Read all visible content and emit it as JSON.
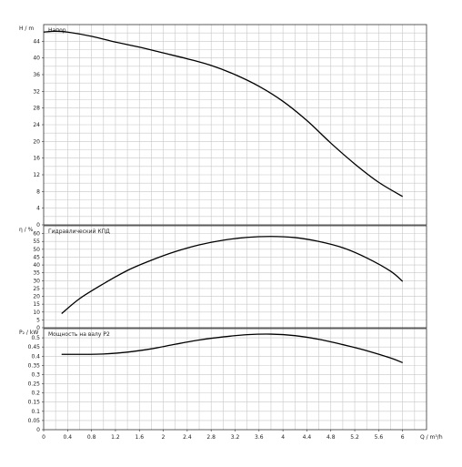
{
  "chart_data": [
    {
      "type": "line",
      "title": "Напор",
      "ylabel": "H / m",
      "xlim": [
        0,
        6.4
      ],
      "ylim": [
        0,
        48
      ],
      "x_ticks": [
        "0",
        "0.4",
        "0.8",
        "1.2",
        "1.6",
        "2",
        "2.4",
        "2.8",
        "3.2",
        "3.6",
        "4",
        "4.4",
        "4.8",
        "5.2",
        "5.6",
        "6"
      ],
      "y_ticks": [
        "0",
        "4",
        "8",
        "12",
        "16",
        "20",
        "24",
        "28",
        "32",
        "36",
        "40",
        "44"
      ],
      "grid": true,
      "series": [
        {
          "x": [
            0,
            0.2,
            0.4,
            0.8,
            1.2,
            1.6,
            2,
            2.4,
            2.8,
            3.2,
            3.6,
            4,
            4.4,
            4.8,
            5.2,
            5.6,
            6
          ],
          "y": [
            46.2,
            46.4,
            46.2,
            45.2,
            43.8,
            42.6,
            41.2,
            39.8,
            38.2,
            36,
            33.2,
            29.6,
            25,
            19.6,
            14.6,
            10.2,
            6.8
          ]
        }
      ]
    },
    {
      "type": "line",
      "title": "Гидравлический КПД",
      "ylabel": "η / %",
      "xlim": [
        0,
        6.4
      ],
      "ylim": [
        0,
        65
      ],
      "x_ticks": [
        "0",
        "0.4",
        "0.8",
        "1.2",
        "1.6",
        "2",
        "2.4",
        "2.8",
        "3.2",
        "3.6",
        "4",
        "4.4",
        "4.8",
        "5.2",
        "5.6",
        "6"
      ],
      "y_ticks": [
        "0",
        "5",
        "10",
        "15",
        "20",
        "25",
        "30",
        "35",
        "40",
        "45",
        "50",
        "55",
        "60"
      ],
      "grid": true,
      "series": [
        {
          "x": [
            0.3,
            0.6,
            1,
            1.4,
            1.8,
            2.2,
            2.6,
            3,
            3.4,
            3.8,
            4.2,
            4.6,
            5,
            5.4,
            5.8,
            6
          ],
          "y": [
            9,
            18.5,
            28,
            36.5,
            43,
            48.5,
            52.8,
            55.8,
            57.6,
            58.2,
            57.5,
            55,
            51,
            44.5,
            36,
            29.5
          ]
        }
      ]
    },
    {
      "type": "line",
      "title": "Мощность на валу P2",
      "ylabel": "P₂ / kW",
      "xlabel": "Q / m³/h",
      "xlim": [
        0,
        6.4
      ],
      "ylim": [
        0,
        0.55
      ],
      "x_ticks": [
        "0",
        "0.4",
        "0.8",
        "1.2",
        "1.6",
        "2",
        "2.4",
        "2.8",
        "3.2",
        "3.6",
        "4",
        "4.4",
        "4.8",
        "5.2",
        "5.6",
        "6"
      ],
      "y_ticks": [
        "0",
        "0.05",
        "0.1",
        "0.15",
        "0.2",
        "0.25",
        "0.3",
        "0.35",
        "0.4",
        "0.45",
        "0.5"
      ],
      "grid": true,
      "series": [
        {
          "x": [
            0.3,
            0.6,
            1,
            1.4,
            1.8,
            2.2,
            2.6,
            3,
            3.4,
            3.8,
            4.2,
            4.6,
            5,
            5.4,
            5.8,
            6
          ],
          "y": [
            0.41,
            0.41,
            0.412,
            0.422,
            0.44,
            0.465,
            0.488,
            0.505,
            0.517,
            0.52,
            0.512,
            0.492,
            0.463,
            0.43,
            0.39,
            0.365
          ]
        }
      ]
    }
  ]
}
